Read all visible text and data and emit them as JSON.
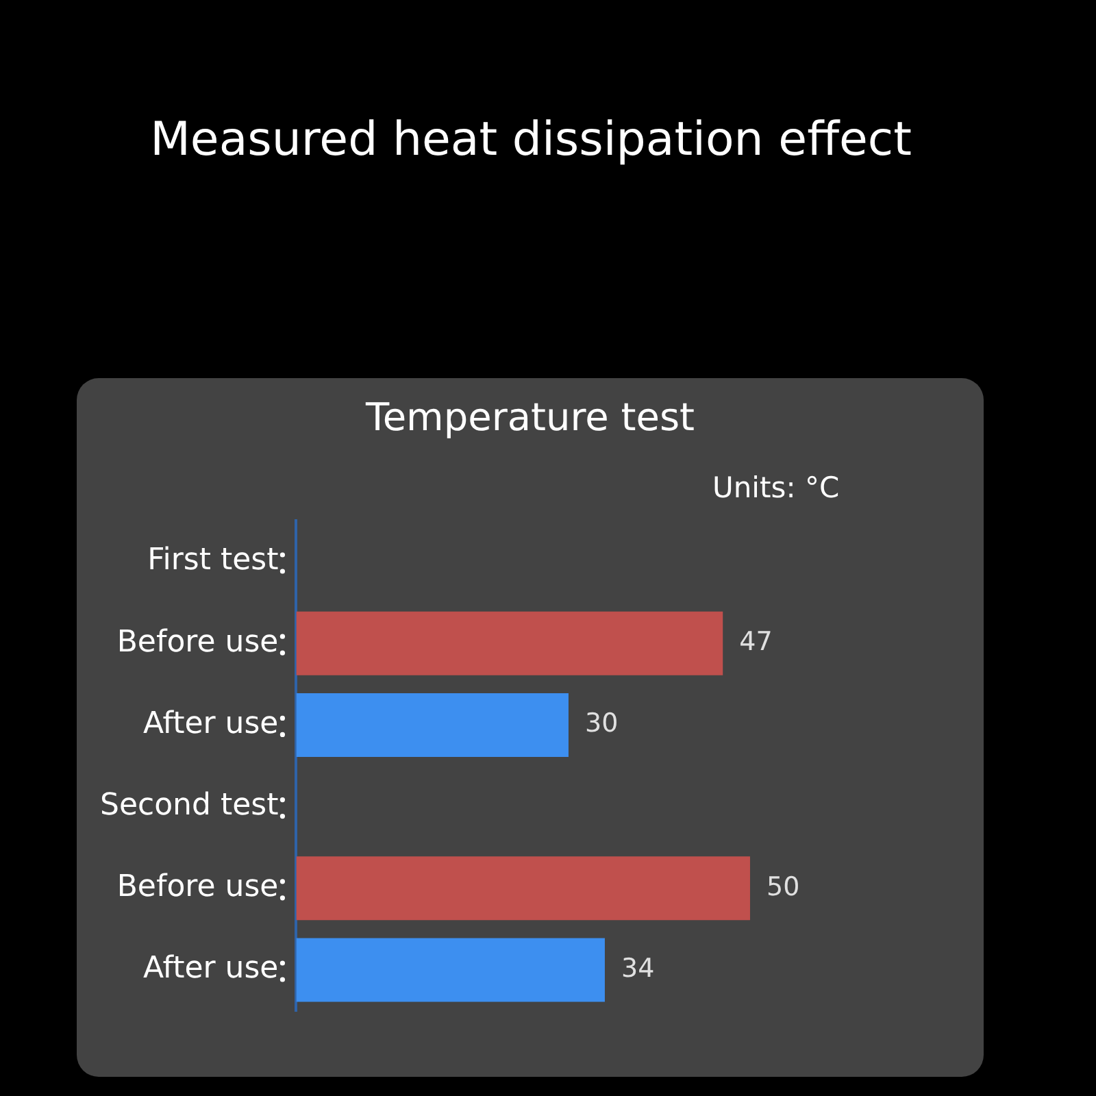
{
  "chart_data": {
    "type": "bar",
    "orientation": "horizontal",
    "title": "Measured heat dissipation effect",
    "subtitle": "Temperature test",
    "annotations": [
      "Units: °C"
    ],
    "categories": [
      "First test",
      "Before use",
      "After use",
      "Second test",
      "Before use",
      "After use"
    ],
    "values": [
      null,
      47,
      30,
      null,
      50,
      34
    ],
    "colors": [
      "#c0504d",
      "#c0504d",
      "#3d8ff0",
      "#c0504d",
      "#c0504d",
      "#3d8ff0"
    ],
    "data_labels": true
  }
}
